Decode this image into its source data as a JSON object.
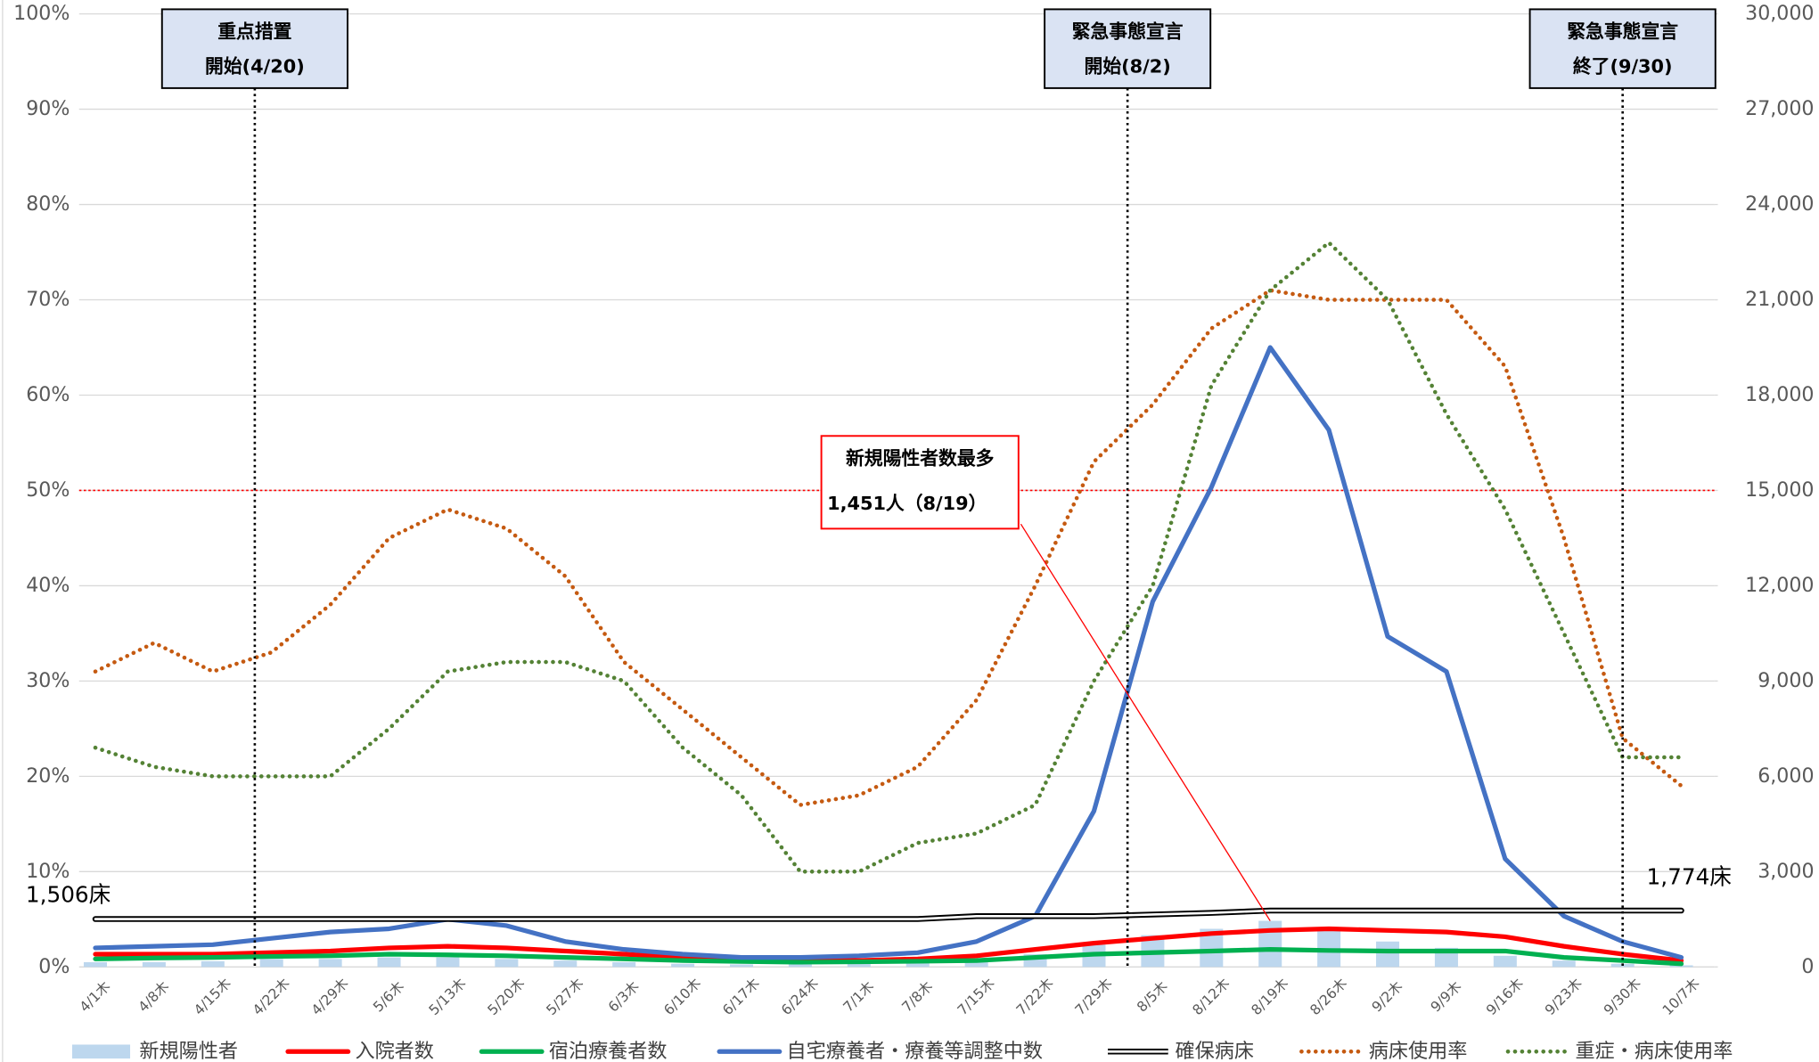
{
  "chart_data": {
    "type": "line",
    "categories": [
      "4/1木",
      "4/8木",
      "4/15木",
      "4/22木",
      "4/29木",
      "5/6木",
      "5/13木",
      "5/20木",
      "5/27木",
      "6/3木",
      "6/10木",
      "6/17木",
      "6/24木",
      "7/1木",
      "7/8木",
      "7/15木",
      "7/22木",
      "7/29木",
      "8/5木",
      "8/12木",
      "8/19木",
      "8/26木",
      "9/2木",
      "9/9木",
      "9/16木",
      "9/23木",
      "9/30木",
      "10/7木"
    ],
    "ylim": [
      0,
      100
    ],
    "yticks": [
      {
        "value": 0,
        "label": "0%"
      },
      {
        "value": 10,
        "label": "10%"
      },
      {
        "value": 20,
        "label": "20%"
      },
      {
        "value": 30,
        "label": "30%"
      },
      {
        "value": 40,
        "label": "40%"
      },
      {
        "value": 50,
        "label": "50%"
      },
      {
        "value": 60,
        "label": "60%"
      },
      {
        "value": 70,
        "label": "70%"
      },
      {
        "value": 80,
        "label": "80%"
      },
      {
        "value": 90,
        "label": "90%"
      },
      {
        "value": 100,
        "label": "100%"
      }
    ],
    "y2lim": [
      0,
      30000
    ],
    "y2ticks": [
      0,
      {
        "value": 3000,
        "label": "3,000"
      },
      {
        "value": 6000,
        "label": "6,000"
      },
      {
        "value": 9000,
        "label": "9,000"
      },
      {
        "value": 12000,
        "label": "12,000"
      },
      {
        "value": 15000,
        "label": "15,000"
      },
      {
        "value": 18000,
        "label": "18,000"
      },
      {
        "value": 21000,
        "label": "21,000"
      },
      {
        "value": 24000,
        "label": "24,000"
      },
      {
        "value": 27000,
        "label": "27,000"
      },
      {
        "value": 30000,
        "label": "30,000"
      }
    ],
    "grid": true,
    "threshold": 50,
    "threshold_color": "#ff0000",
    "series": [
      {
        "name": "新規陽性者",
        "type": "bar",
        "axis": "y2",
        "color": "#bdd7ee",
        "values": [
          150,
          150,
          180,
          250,
          250,
          300,
          300,
          250,
          200,
          150,
          100,
          80,
          80,
          100,
          130,
          250,
          400,
          700,
          1000,
          1200,
          1451,
          1150,
          800,
          600,
          350,
          200,
          100,
          50
        ]
      },
      {
        "name": "入院者数",
        "axis": "y2",
        "color": "#ff0000",
        "style": "solid",
        "values": [
          400,
          400,
          400,
          450,
          500,
          600,
          650,
          600,
          500,
          400,
          300,
          250,
          200,
          200,
          250,
          350,
          550,
          750,
          900,
          1050,
          1150,
          1200,
          1150,
          1100,
          950,
          650,
          400,
          200
        ]
      },
      {
        "name": "宿泊療養者数",
        "axis": "y2",
        "color": "#00b050",
        "style": "solid",
        "values": [
          250,
          280,
          300,
          330,
          350,
          400,
          380,
          350,
          300,
          250,
          200,
          170,
          150,
          160,
          180,
          200,
          300,
          400,
          450,
          500,
          550,
          520,
          500,
          500,
          500,
          300,
          200,
          100
        ]
      },
      {
        "name": "自宅療養者・療養等調整中数",
        "axis": "y2",
        "color": "#4472c4",
        "style": "solid",
        "values": [
          600,
          650,
          700,
          900,
          1100,
          1200,
          1500,
          1300,
          800,
          550,
          400,
          300,
          300,
          350,
          450,
          800,
          1600,
          4900,
          11500,
          15100,
          19500,
          16900,
          10400,
          9300,
          3400,
          1600,
          800,
          300
        ]
      },
      {
        "name": "確保病床",
        "axis": "y2",
        "color": "#000000",
        "style": "double",
        "values": [
          1506,
          1506,
          1506,
          1506,
          1506,
          1506,
          1506,
          1506,
          1506,
          1506,
          1506,
          1506,
          1506,
          1506,
          1506,
          1600,
          1600,
          1600,
          1650,
          1700,
          1774,
          1774,
          1774,
          1774,
          1774,
          1774,
          1774,
          1774
        ],
        "value_labels": [
          "1,506床",
          null,
          null,
          null,
          null,
          null,
          null,
          null,
          null,
          null,
          null,
          null,
          null,
          null,
          null,
          null,
          null,
          null,
          null,
          null,
          null,
          null,
          null,
          null,
          null,
          null,
          null,
          "1,774床"
        ]
      },
      {
        "name": "病床使用率",
        "color": "#c55a11",
        "style": "dotted",
        "values": [
          31,
          34,
          31,
          33,
          38,
          45,
          48,
          46,
          41,
          32,
          27,
          22,
          17,
          18,
          21,
          28,
          40,
          53,
          59,
          67,
          71,
          70,
          70,
          70,
          63,
          45,
          24,
          19
        ]
      },
      {
        "name": "重症・病床使用率",
        "color": "#548235",
        "style": "dotted",
        "values": [
          23,
          21,
          20,
          20,
          20,
          25,
          31,
          32,
          32,
          30,
          23,
          18,
          10,
          10,
          13,
          14,
          17,
          30,
          40,
          61,
          71,
          76,
          70,
          58,
          48,
          35,
          22,
          22
        ]
      }
    ],
    "events": [
      {
        "lines": [
          "重点措置",
          "開始(4/20)"
        ]
      },
      {
        "lines": [
          "緊急事態宣言",
          "開始(8/2)"
        ]
      },
      {
        "lines": [
          "緊急事態宣言",
          "終了(9/30)"
        ]
      }
    ],
    "annotation": {
      "lines": [
        "新規陽性者数最多",
        "1,451人（8/19）"
      ],
      "color": "#ff0000"
    }
  }
}
